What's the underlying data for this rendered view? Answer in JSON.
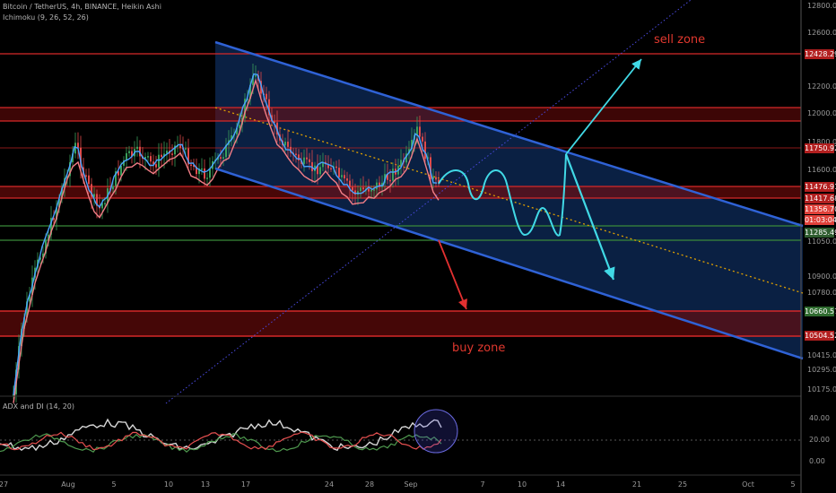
{
  "header": {
    "title": "Bitcoin / TetherUS, 4h, BINANCE, Heikin Ashi",
    "indicator": "Ichimoku (9, 26, 52, 26)"
  },
  "annotations": {
    "sell_zone": "sell zone",
    "buy_zone": "buy zone"
  },
  "adx_panel": {
    "label": "ADX and DI (14, 20)",
    "y_ticks": [
      "40.00",
      "20.00",
      "0.00"
    ],
    "threshold": 20
  },
  "price_axis": {
    "ticks": [
      "12800.00",
      "12600.00",
      "12200.00",
      "12000.00",
      "11800.00",
      "11600.00",
      "11050.00",
      "10900.00",
      "10780.00",
      "10415.00",
      "10295.00",
      "10175.00"
    ],
    "boxes": [
      {
        "label": "12428.29",
        "color": "#b21f1f"
      },
      {
        "label": "11750.92",
        "color": "#b21f1f"
      },
      {
        "label": "11476.91",
        "color": "#b21f1f"
      },
      {
        "label": "11417.68",
        "color": "#b21f1f"
      },
      {
        "label": "11356.70",
        "color": "#e0413a"
      },
      {
        "label": "01:03:04",
        "color": "#e0413a"
      },
      {
        "label": "11285.49",
        "color": "#2f5d2f"
      },
      {
        "label": "10660.57",
        "color": "#2f6b2f"
      },
      {
        "label": "10504.52",
        "color": "#b21f1f"
      }
    ]
  },
  "time_axis": [
    "27",
    "Aug",
    "5",
    "10",
    "13",
    "17",
    "24",
    "28",
    "Sep",
    "7",
    "10",
    "14",
    "21",
    "25",
    "Oct",
    "5"
  ],
  "colors": {
    "channel": "#2f62d6",
    "resistance": "#d62828",
    "support": "#3a8a3a",
    "projection": "#41d9e6",
    "breakdown": "#e23030",
    "midline": "#e0a000",
    "diagonal": "#4a4ae0"
  },
  "chart_data": {
    "type": "line",
    "title": "Bitcoin / TetherUS, 4h, BINANCE, Heikin Ashi",
    "x_axis": [
      "27",
      "Aug",
      "5",
      "10",
      "13",
      "17",
      "24",
      "28",
      "Sep",
      "7",
      "10",
      "14",
      "21",
      "25",
      "Oct",
      "5"
    ],
    "horizontal_levels": [
      12428.29,
      12040,
      11960,
      11750.92,
      11476.91,
      11417.68,
      11356.7,
      11285.49,
      11110,
      10660.57,
      10504.52
    ],
    "current_price": 11356.7,
    "projected_target": 12428.29,
    "buy_zone": [
      10504.52,
      10660.57
    ],
    "adx_threshold": 20
  }
}
